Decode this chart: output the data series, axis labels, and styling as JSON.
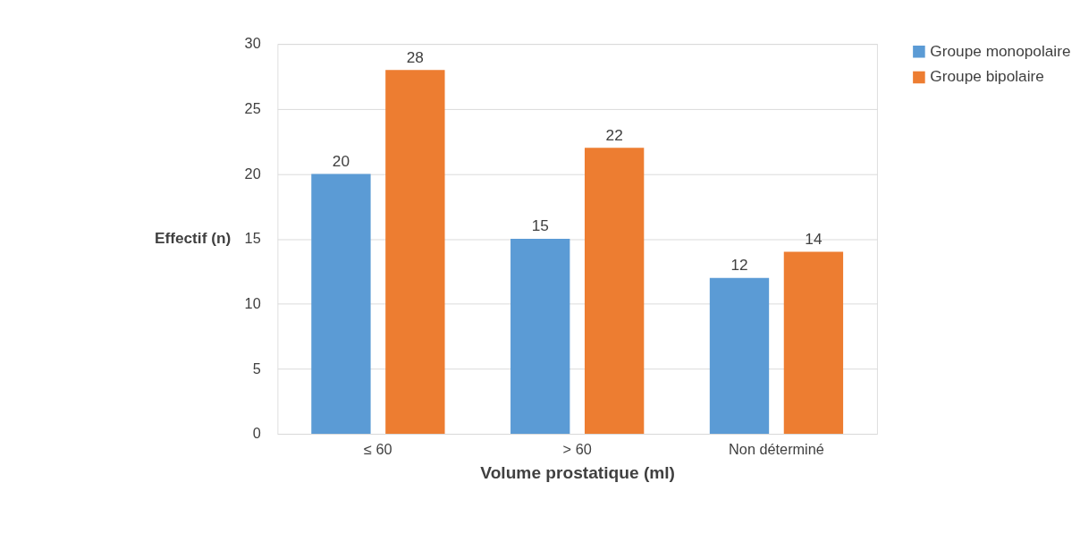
{
  "chart_data": {
    "type": "bar",
    "xlabel": "Volume prostatique (ml)",
    "ylabel": "Effectif (n)",
    "categories": [
      "≤ 60",
      "> 60",
      "Non déterminé"
    ],
    "series": [
      {
        "name": "Groupe monopolaire",
        "color": "#5b9bd5",
        "values": [
          20,
          15,
          12
        ]
      },
      {
        "name": "Groupe bipolaire",
        "color": "#ed7d31",
        "values": [
          28,
          22,
          14
        ]
      }
    ],
    "ylim": [
      0,
      30
    ],
    "yticks": [
      0,
      5,
      10,
      15,
      20,
      25,
      30
    ],
    "grid": "y",
    "legend": "right",
    "data_labels": true
  }
}
